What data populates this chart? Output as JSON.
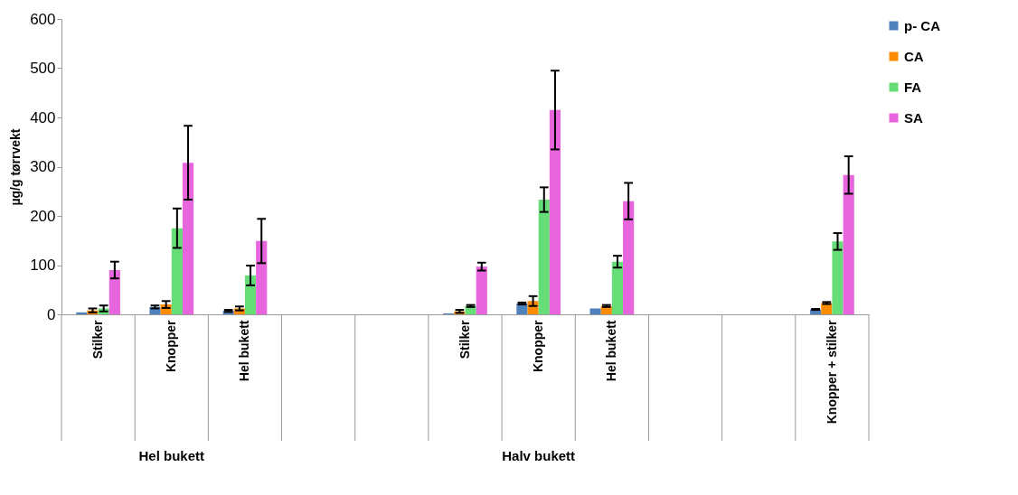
{
  "chart_data": {
    "type": "bar",
    "ylabel": "µg/g tørrvekt",
    "categories": [
      "Stilker",
      "Knopper",
      "Hel bukett",
      null,
      null,
      "Stilker",
      "Knopper",
      "Hel bukett",
      null,
      null,
      "Knopper + stilker"
    ],
    "series": [
      {
        "name": "p- CA",
        "color": "#4f81bd",
        "values": [
          4,
          15,
          7,
          null,
          null,
          2,
          22,
          12,
          null,
          null,
          10
        ],
        "errors": [
          null,
          3,
          2,
          null,
          null,
          null,
          2,
          null,
          null,
          null,
          1
        ]
      },
      {
        "name": "CA",
        "color": "#ff8c00",
        "values": [
          8,
          20,
          12,
          null,
          null,
          6,
          27,
          17,
          null,
          null,
          23
        ],
        "errors": [
          4,
          7,
          4,
          null,
          null,
          3,
          10,
          2,
          null,
          null,
          2
        ]
      },
      {
        "name": "FA",
        "color": "#66dd77",
        "values": [
          12,
          175,
          79,
          null,
          null,
          17,
          233,
          107,
          null,
          null,
          148
        ],
        "errors": [
          6,
          40,
          20,
          null,
          null,
          2,
          25,
          12,
          null,
          null,
          17
        ]
      },
      {
        "name": "SA",
        "color": "#e866dd",
        "values": [
          90,
          308,
          149,
          null,
          null,
          97,
          415,
          230,
          null,
          null,
          283
        ],
        "errors": [
          17,
          75,
          45,
          null,
          null,
          8,
          80,
          37,
          null,
          null,
          38
        ]
      }
    ],
    "ylim": [
      0,
      600
    ],
    "yticks": [
      0,
      100,
      200,
      300,
      400,
      500,
      600
    ],
    "grid": false,
    "legend": "right",
    "annotations": [
      "Hel bukett",
      "Halv bukett"
    ]
  }
}
